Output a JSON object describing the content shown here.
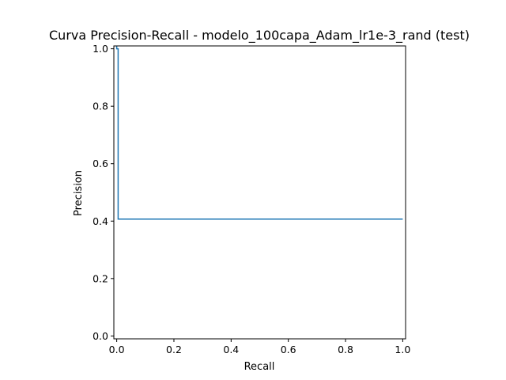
{
  "chart_data": {
    "type": "line",
    "title": "Curva Precision-Recall - modelo_100capa_Adam_lr1e-3_rand (test)",
    "xlabel": "Recall",
    "ylabel": "Precision",
    "xlim": [
      -0.01,
      1.01
    ],
    "ylim": [
      -0.01,
      1.01
    ],
    "xticks": [
      "0.0",
      "0.2",
      "0.4",
      "0.6",
      "0.8",
      "1.0"
    ],
    "yticks": [
      "0.0",
      "0.2",
      "0.4",
      "0.6",
      "0.8",
      "1.0"
    ],
    "grid": false,
    "series": [
      {
        "color": "#1f77b4",
        "x": [
          0.0,
          0.0,
          0.005,
          0.005,
          1.0
        ],
        "y": [
          1.01,
          1.0,
          1.0,
          0.407,
          0.407
        ]
      }
    ]
  }
}
